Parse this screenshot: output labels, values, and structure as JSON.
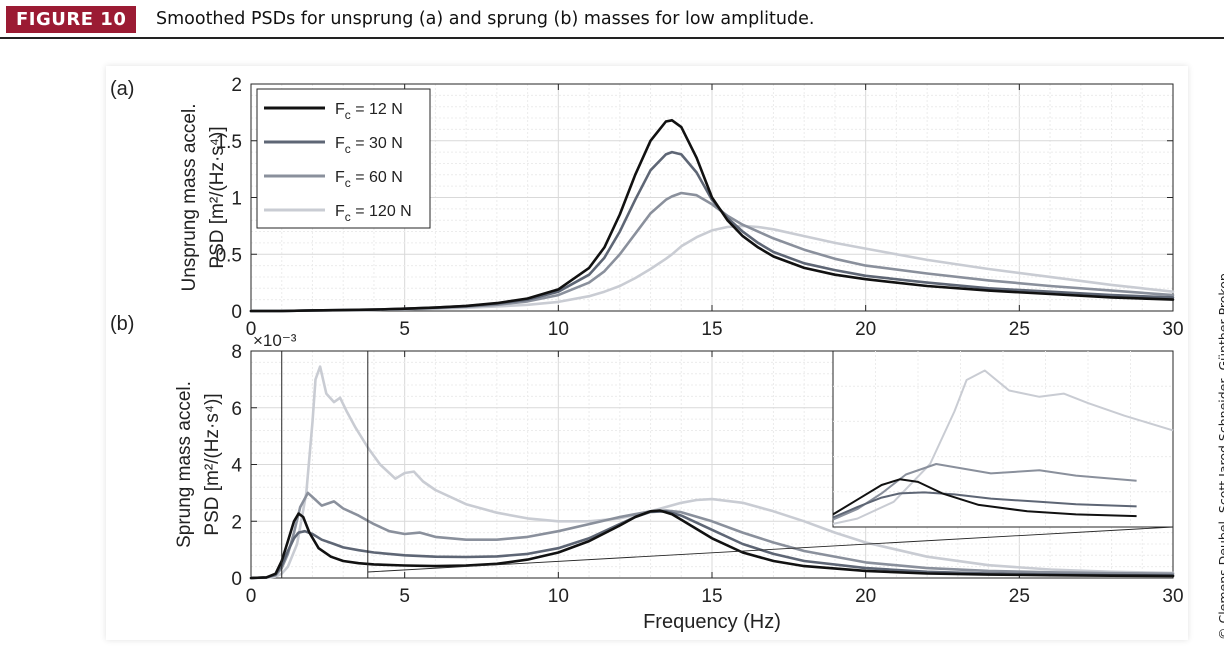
{
  "figure": {
    "badge": "FIGURE 10",
    "caption": "Smoothed PSDs for unsprung (a) and sprung (b) masses for low amplitude.",
    "credit": "© Clemens Deubel, Scott Jarod Schneider, Günther Prokop",
    "badge_color": "#9b1b33"
  },
  "chart_data": [
    {
      "type": "line",
      "panel_label": "(a)",
      "ylabel": [
        "Unsprung  mass accel.",
        "PSD [m²/(Hz·s⁴)]"
      ],
      "xlabel": "",
      "xlim": [
        0,
        30
      ],
      "ylim": [
        0,
        2
      ],
      "xticks": [
        0,
        5,
        10,
        15,
        20,
        25,
        30
      ],
      "xtick_labels": [
        "0",
        "5",
        "10",
        "15",
        "20",
        "25",
        "30"
      ],
      "yticks": [
        0,
        0.5,
        1,
        1.5,
        2
      ],
      "ytick_labels": [
        "0",
        "0.5",
        "1",
        "1.5",
        "2"
      ],
      "grid": true,
      "legend_position": "top-left",
      "x": [
        0,
        1,
        2,
        3,
        4,
        5,
        6,
        7,
        8,
        9,
        10,
        11,
        11.5,
        12,
        12.5,
        13,
        13.5,
        13.7,
        14,
        14.5,
        15,
        15.5,
        16,
        16.5,
        17,
        18,
        19,
        20,
        22,
        24,
        26,
        28,
        30
      ],
      "series": [
        {
          "name": "Fc = 12 N",
          "legend_main": "F",
          "legend_sub": "c",
          "legend_rest": " = 12 N",
          "color": "#111111",
          "values": [
            0,
            0,
            0.005,
            0.008,
            0.012,
            0.02,
            0.03,
            0.045,
            0.07,
            0.11,
            0.19,
            0.38,
            0.56,
            0.85,
            1.2,
            1.5,
            1.67,
            1.68,
            1.62,
            1.35,
            1.0,
            0.8,
            0.66,
            0.56,
            0.48,
            0.38,
            0.32,
            0.28,
            0.22,
            0.18,
            0.15,
            0.12,
            0.1
          ]
        },
        {
          "name": "Fc = 30 N",
          "legend_main": "F",
          "legend_sub": "c",
          "legend_rest": " = 30 N",
          "color": "#5e6675",
          "values": [
            0,
            0,
            0.005,
            0.008,
            0.012,
            0.02,
            0.03,
            0.043,
            0.065,
            0.1,
            0.17,
            0.32,
            0.47,
            0.7,
            0.98,
            1.24,
            1.38,
            1.4,
            1.38,
            1.22,
            0.98,
            0.82,
            0.7,
            0.6,
            0.52,
            0.42,
            0.36,
            0.31,
            0.25,
            0.2,
            0.17,
            0.14,
            0.12
          ]
        },
        {
          "name": "Fc = 60 N",
          "legend_main": "F",
          "legend_sub": "c",
          "legend_rest": " = 60 N",
          "color": "#8a909c",
          "values": [
            0,
            0,
            0.005,
            0.007,
            0.011,
            0.018,
            0.027,
            0.038,
            0.055,
            0.085,
            0.14,
            0.25,
            0.35,
            0.5,
            0.68,
            0.86,
            0.98,
            1.01,
            1.04,
            1.02,
            0.94,
            0.84,
            0.76,
            0.7,
            0.64,
            0.54,
            0.46,
            0.4,
            0.33,
            0.27,
            0.22,
            0.18,
            0.14
          ]
        },
        {
          "name": "Fc = 120 N",
          "legend_main": "F",
          "legend_sub": "c",
          "legend_rest": " = 120 N",
          "color": "#c9ccd3",
          "values": [
            0,
            0,
            0.004,
            0.006,
            0.009,
            0.013,
            0.02,
            0.028,
            0.04,
            0.055,
            0.08,
            0.13,
            0.17,
            0.22,
            0.29,
            0.37,
            0.46,
            0.5,
            0.57,
            0.65,
            0.71,
            0.74,
            0.75,
            0.74,
            0.72,
            0.66,
            0.6,
            0.55,
            0.45,
            0.37,
            0.3,
            0.23,
            0.17
          ]
        }
      ]
    },
    {
      "type": "line",
      "panel_label": "(b)",
      "exponent_label": "×10⁻³",
      "ylabel": [
        "Sprung  mass accel.",
        "PSD [m²/(Hz·s⁴)]"
      ],
      "xlabel": "Frequency (Hz)",
      "xlim": [
        0,
        30
      ],
      "ylim": [
        0,
        8
      ],
      "xticks": [
        0,
        5,
        10,
        15,
        20,
        25,
        30
      ],
      "xtick_labels": [
        "0",
        "5",
        "10",
        "15",
        "20",
        "25",
        "30"
      ],
      "yticks": [
        0,
        2,
        4,
        6,
        8
      ],
      "ytick_labels": [
        "0",
        "2",
        "4",
        "6",
        "8"
      ],
      "grid": true,
      "zoom_box_x": [
        1,
        3.8
      ],
      "inset_position": "upper-right",
      "series": [
        {
          "name": "Fc = 12 N",
          "color": "#111111",
          "x": [
            0,
            0.5,
            0.8,
            1.0,
            1.2,
            1.4,
            1.55,
            1.7,
            1.9,
            2.2,
            2.6,
            3.0,
            3.5,
            4,
            5,
            6,
            7,
            8,
            9,
            10,
            11,
            12,
            12.5,
            13,
            13.3,
            13.7,
            14,
            15,
            16,
            17,
            18,
            20,
            22,
            24,
            26,
            28,
            30
          ],
          "values": [
            0,
            0.02,
            0.15,
            0.6,
            1.3,
            2.0,
            2.27,
            2.15,
            1.6,
            1.05,
            0.75,
            0.6,
            0.52,
            0.48,
            0.44,
            0.42,
            0.44,
            0.5,
            0.65,
            0.9,
            1.3,
            1.85,
            2.15,
            2.35,
            2.38,
            2.25,
            2.05,
            1.4,
            0.9,
            0.6,
            0.42,
            0.25,
            0.16,
            0.12,
            0.1,
            0.08,
            0.07
          ]
        },
        {
          "name": "Fc = 30 N",
          "color": "#5e6675",
          "x": [
            0,
            0.5,
            0.8,
            1.0,
            1.2,
            1.4,
            1.55,
            1.75,
            2.0,
            2.3,
            2.7,
            3.0,
            3.5,
            4,
            5,
            6,
            7,
            8,
            9,
            10,
            11,
            12,
            12.5,
            13,
            13.5,
            14,
            15,
            16,
            17,
            18,
            20,
            22,
            24,
            26,
            28,
            30
          ],
          "values": [
            0,
            0.02,
            0.12,
            0.45,
            0.95,
            1.4,
            1.6,
            1.65,
            1.55,
            1.35,
            1.2,
            1.08,
            0.98,
            0.9,
            0.8,
            0.75,
            0.74,
            0.76,
            0.85,
            1.05,
            1.4,
            1.9,
            2.15,
            2.33,
            2.35,
            2.2,
            1.7,
            1.2,
            0.85,
            0.6,
            0.35,
            0.22,
            0.16,
            0.12,
            0.1,
            0.09
          ]
        },
        {
          "name": "Fc = 60 N",
          "color": "#8a909c",
          "x": [
            0,
            0.5,
            0.8,
            1.0,
            1.2,
            1.4,
            1.6,
            1.85,
            2.0,
            2.3,
            2.7,
            3.0,
            3.5,
            4,
            4.5,
            5,
            5.5,
            6,
            7,
            8,
            9,
            10,
            11,
            12,
            13,
            13.5,
            14,
            15,
            16,
            17,
            18,
            20,
            22,
            24,
            26,
            28,
            30
          ],
          "values": [
            0,
            0.02,
            0.1,
            0.35,
            0.85,
            1.6,
            2.5,
            3.0,
            2.85,
            2.55,
            2.7,
            2.45,
            2.2,
            1.9,
            1.65,
            1.55,
            1.6,
            1.45,
            1.35,
            1.35,
            1.45,
            1.65,
            1.9,
            2.15,
            2.35,
            2.38,
            2.32,
            2.0,
            1.6,
            1.25,
            0.95,
            0.55,
            0.35,
            0.25,
            0.2,
            0.17,
            0.15
          ]
        },
        {
          "name": "Fc = 120 N",
          "color": "#c9ccd3",
          "x": [
            0,
            0.5,
            0.8,
            1.0,
            1.2,
            1.5,
            1.8,
            2.0,
            2.1,
            2.25,
            2.45,
            2.7,
            2.9,
            3.1,
            3.4,
            3.8,
            4.2,
            4.7,
            5.0,
            5.3,
            5.6,
            6,
            7,
            8,
            9,
            10,
            11,
            12,
            13,
            14,
            14.5,
            15,
            16,
            17,
            18,
            19,
            20,
            22,
            24,
            26,
            28,
            30
          ],
          "values": [
            0,
            0.01,
            0.05,
            0.15,
            0.4,
            1.2,
            3.0,
            5.5,
            7.0,
            7.45,
            6.5,
            6.2,
            6.35,
            5.9,
            5.3,
            4.6,
            4.0,
            3.5,
            3.7,
            3.75,
            3.4,
            3.1,
            2.6,
            2.3,
            2.1,
            2.0,
            2.0,
            2.1,
            2.35,
            2.65,
            2.75,
            2.78,
            2.65,
            2.35,
            2.0,
            1.6,
            1.25,
            0.75,
            0.45,
            0.3,
            0.22,
            0.18
          ]
        }
      ]
    }
  ]
}
